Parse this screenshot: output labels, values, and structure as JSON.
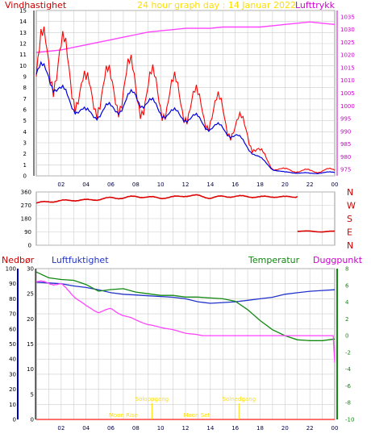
{
  "header": {
    "left_label": "Vindhastighet",
    "title": "24 hour graph day : 14 Januar 2022",
    "right_label": "Lufttrykk"
  },
  "bottom_labels": {
    "precip": "Nedbør",
    "humidity": "Luftfuktighet",
    "temperature": "Temperatur",
    "dewpoint": "Duggpunkt",
    "sunrise": "Soloppgang",
    "sunset": "Solnedgang",
    "moonrise": "Moon Rise",
    "moonset": "Moon Set"
  },
  "colors": {
    "wind": "#ff0000",
    "gust": "#ff0000",
    "wind_avg": "#0000dd",
    "pressure": "#ff44ff",
    "direction": "#dd0000",
    "humidity": "#2233cc",
    "temperature": "#118811",
    "dewpoint": "#ff44ff",
    "precip": "#ff4444",
    "sun": "#ffdd00",
    "grid": "#cccccc",
    "axis_left": "#000000",
    "axis_right": "#cc00cc"
  },
  "x_hour_labels": [
    "02",
    "04",
    "06",
    "08",
    "10",
    "12",
    "14",
    "16",
    "18",
    "20",
    "22",
    "00"
  ],
  "chart_data": [
    {
      "type": "line",
      "title": "24 hour graph day : 14 Januar 2022",
      "ylabel": "Vindhastighet",
      "y2label": "Lufttrykk",
      "ylim": [
        0,
        15
      ],
      "y_ticks": [
        0,
        1,
        2,
        3,
        4,
        5,
        6,
        7,
        8,
        9,
        10,
        11,
        12,
        13,
        14,
        15
      ],
      "y2lim": [
        972.5,
        1037.5
      ],
      "y2_ticks": [
        975,
        980,
        985,
        990,
        995,
        1000,
        1005,
        1010,
        1015,
        1020,
        1025,
        1030,
        1035
      ],
      "x_hours": [
        0,
        1,
        2,
        3,
        4,
        5,
        6,
        7,
        8,
        9,
        10,
        11,
        12,
        13,
        14,
        15,
        16,
        17,
        18,
        19,
        20,
        21,
        22,
        23,
        24
      ],
      "series": [
        {
          "name": "Vindhastighet",
          "axis": "left",
          "values": [
            9,
            11.5,
            10,
            9,
            7,
            8,
            7.5,
            8.5,
            8,
            7.5,
            7.5,
            7,
            7,
            6,
            6,
            5.5,
            4.5,
            4,
            2,
            0.8,
            0.5,
            0.5,
            0.4,
            0.5,
            0.5
          ]
        },
        {
          "name": "wind_avg",
          "axis": "left",
          "values": [
            9.2,
            9.3,
            7.5,
            6.5,
            5.5,
            5.8,
            6,
            6.5,
            7.3,
            6.5,
            6,
            5.5,
            5.5,
            5,
            4.5,
            4.2,
            3.7,
            2.6,
            1.6,
            0.6,
            0.3,
            0.3,
            0.2,
            0.3,
            0.3
          ]
        },
        {
          "name": "Lufttrykk",
          "axis": "right",
          "values": [
            1021,
            1021.5,
            1022,
            1023,
            1024,
            1025,
            1026,
            1027,
            1028,
            1029,
            1029.5,
            1030,
            1030.5,
            1030.5,
            1030.5,
            1031,
            1031,
            1031,
            1031,
            1031.5,
            1032,
            1032.5,
            1033,
            1032.5,
            1032
          ]
        }
      ]
    },
    {
      "type": "scatter",
      "ylim": [
        0,
        360
      ],
      "y_ticks": [
        0,
        90,
        180,
        270,
        360
      ],
      "y_tick_labels": [
        "0",
        "90",
        "180",
        "270",
        "360"
      ],
      "compass_labels": [
        "N",
        "W",
        "S",
        "E",
        "N"
      ],
      "x_hours": [
        0,
        1,
        2,
        3,
        4,
        5,
        6,
        7,
        8,
        9,
        10,
        11,
        12,
        13,
        14,
        15,
        16,
        17,
        18,
        19,
        20,
        21,
        22,
        23,
        24
      ],
      "series": [
        {
          "name": "direction",
          "values": [
            285,
            295,
            300,
            305,
            305,
            310,
            320,
            320,
            330,
            325,
            320,
            325,
            335,
            335,
            320,
            330,
            330,
            330,
            325,
            330,
            325,
            330,
            null,
            null,
            null
          ]
        },
        {
          "name": "direction_low",
          "values": [
            null,
            null,
            null,
            null,
            null,
            null,
            null,
            null,
            null,
            null,
            null,
            null,
            null,
            null,
            null,
            null,
            null,
            null,
            null,
            null,
            null,
            95,
            95,
            90,
            95
          ]
        }
      ]
    },
    {
      "type": "line",
      "ylabel": "Luftfuktighet",
      "y2label": "Temperatur",
      "ylim": [
        0,
        100
      ],
      "y_ticks": [
        0,
        10,
        20,
        30,
        40,
        50,
        60,
        70,
        80,
        90,
        100
      ],
      "precip_lim": [
        0,
        30
      ],
      "precip_ticks": [
        0,
        5,
        10,
        15,
        20,
        25,
        30
      ],
      "y2lim": [
        -10,
        8
      ],
      "y2_ticks": [
        8,
        6,
        4,
        2,
        0,
        -2,
        -4,
        -6,
        -8,
        -10
      ],
      "x_hours": [
        0,
        1,
        2,
        3,
        4,
        5,
        6,
        7,
        8,
        9,
        10,
        11,
        12,
        13,
        14,
        15,
        16,
        17,
        18,
        19,
        20,
        21,
        22,
        23,
        24
      ],
      "series": [
        {
          "name": "Luftfuktighet",
          "axis": "left",
          "values": [
            91,
            90.5,
            90,
            88.5,
            87.5,
            86,
            84,
            83,
            82.5,
            82,
            81.5,
            81,
            80,
            78,
            77,
            77.5,
            78,
            79,
            80,
            81,
            83,
            84,
            85,
            85.5,
            86
          ]
        },
        {
          "name": "Temperatur",
          "axis": "right",
          "values": [
            7.6,
            6.9,
            6.7,
            6.6,
            6.1,
            5.3,
            5.5,
            5.6,
            5.2,
            5.0,
            4.8,
            4.8,
            4.6,
            4.6,
            4.5,
            4.4,
            4.1,
            3.1,
            1.8,
            0.7,
            0.0,
            -0.5,
            -0.6,
            -0.6,
            -0.4
          ]
        },
        {
          "name": "Duggpunkt",
          "axis": "right",
          "values": [
            6.4,
            6.3,
            6.1,
            4.8,
            3.5,
            2.8,
            3.2,
            2.4,
            1.9,
            1.3,
            1.0,
            0.7,
            0.3,
            0.1,
            -0.2,
            -0.4,
            -0.7,
            -1.0,
            -1.6,
            -2.3,
            -2.9,
            -3.3,
            -3.6,
            -3.5,
            -3.2
          ]
        },
        {
          "name": "Nedbør",
          "axis": "precip",
          "values": [
            0,
            0,
            0,
            0,
            0,
            0,
            0,
            0,
            0,
            0,
            0,
            0,
            0,
            0,
            0,
            0,
            0,
            0,
            0,
            0,
            0,
            0,
            0,
            0,
            0
          ]
        }
      ],
      "events": {
        "Soloppgang": 9.3,
        "Solnedgang": 16.3,
        "Moon Rise": 7.0,
        "Moon Set": 12.9
      }
    }
  ]
}
